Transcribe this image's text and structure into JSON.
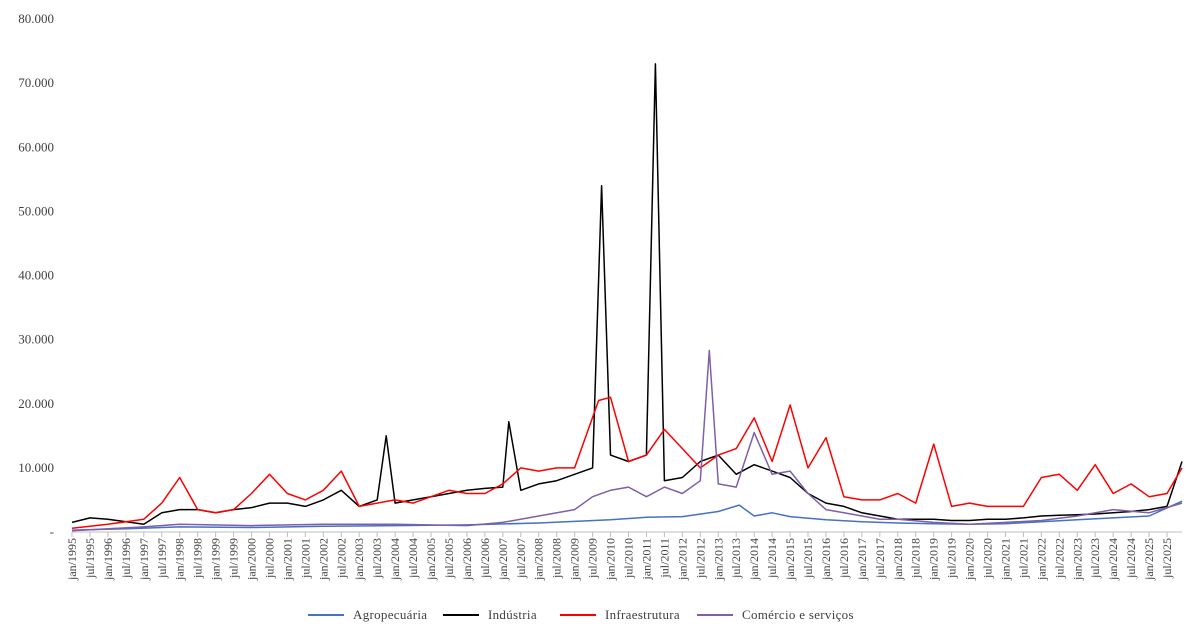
{
  "chart_data": {
    "type": "line",
    "title": "",
    "xlabel": "",
    "ylabel": "",
    "ylim": [
      0,
      80000
    ],
    "yticks": [
      0,
      10000,
      20000,
      30000,
      40000,
      50000,
      60000,
      70000,
      80000
    ],
    "ytick_labels": [
      "-",
      "10.000",
      "20.000",
      "30.000",
      "40.000",
      "50.000",
      "60.000",
      "70.000",
      "80.000"
    ],
    "x_start": "jan/1995",
    "x_end": "dez/2025",
    "x_tick_labels": [
      "jan/1995",
      "jul/1995",
      "jan/1996",
      "jul/1996",
      "jan/1997",
      "jul/1997",
      "jan/1998",
      "jul/1998",
      "jan/1999",
      "jul/1999",
      "jan/2000",
      "jul/2000",
      "jan/2001",
      "jul/2001",
      "jan/2002",
      "jul/2002",
      "jan/2003",
      "jul/2003",
      "jan/2004",
      "jul/2004",
      "jan/2005",
      "jul/2005",
      "jan/2006",
      "jul/2006",
      "jan/2007",
      "jul/2007",
      "jan/2008",
      "jul/2008",
      "jan/2009",
      "jul/2009",
      "jan/2010",
      "jul/2010",
      "jan/2011",
      "jul/2011",
      "jan/2012",
      "jul/2012",
      "jan/2013",
      "jul/2013",
      "jan/2014",
      "jul/2014",
      "jan/2015",
      "jul/2015",
      "jan/2016",
      "jul/2016",
      "jan/2017",
      "jul/2017",
      "jan/2018",
      "jul/2018",
      "jan/2019",
      "jul/2019",
      "jan/2020",
      "jul/2020",
      "jan/2021",
      "jul/2021",
      "jan/2022",
      "jul/2022",
      "jan/2023",
      "jul/2023",
      "jan/2024",
      "jul/2024",
      "jan/2025",
      "jul/2025"
    ],
    "grid": false,
    "legend_position": "bottom",
    "series": [
      {
        "name": "Agropecuária",
        "color": "#4472c4",
        "points": [
          [
            "jan/1995",
            300
          ],
          [
            "jul/1996",
            500
          ],
          [
            "jan/1998",
            800
          ],
          [
            "jan/2000",
            700
          ],
          [
            "jan/2002",
            900
          ],
          [
            "jan/2004",
            1000
          ],
          [
            "jan/2006",
            1100
          ],
          [
            "jan/2008",
            1400
          ],
          [
            "jan/2010",
            1900
          ],
          [
            "jan/2011",
            2300
          ],
          [
            "jan/2012",
            2400
          ],
          [
            "jan/2013",
            3200
          ],
          [
            "ago/2013",
            4200
          ],
          [
            "jan/2014",
            2500
          ],
          [
            "jul/2014",
            3000
          ],
          [
            "jan/2015",
            2400
          ],
          [
            "jan/2016",
            1900
          ],
          [
            "jan/2017",
            1600
          ],
          [
            "jan/2018",
            1400
          ],
          [
            "jan/2019",
            1300
          ],
          [
            "jan/2020",
            1200
          ],
          [
            "jan/2021",
            1300
          ],
          [
            "jan/2022",
            1600
          ],
          [
            "jan/2023",
            1900
          ],
          [
            "jan/2024",
            2200
          ],
          [
            "jan/2025",
            2500
          ],
          [
            "dez/2025",
            4800
          ]
        ]
      },
      {
        "name": "Indústria",
        "color": "#000000",
        "points": [
          [
            "jan/1995",
            1500
          ],
          [
            "jul/1995",
            2200
          ],
          [
            "jan/1996",
            2000
          ],
          [
            "jul/1996",
            1600
          ],
          [
            "jan/1997",
            1200
          ],
          [
            "jul/1997",
            3000
          ],
          [
            "jan/1998",
            3500
          ],
          [
            "jul/1998",
            3500
          ],
          [
            "jan/1999",
            3000
          ],
          [
            "jul/1999",
            3500
          ],
          [
            "jan/2000",
            3800
          ],
          [
            "jul/2000",
            4500
          ],
          [
            "jan/2001",
            4500
          ],
          [
            "jul/2001",
            4000
          ],
          [
            "jan/2002",
            5000
          ],
          [
            "jul/2002",
            6500
          ],
          [
            "jan/2003",
            4000
          ],
          [
            "jul/2003",
            5000
          ],
          [
            "out/2003",
            15000
          ],
          [
            "jan/2004",
            4500
          ],
          [
            "jul/2004",
            5000
          ],
          [
            "jan/2005",
            5500
          ],
          [
            "jul/2005",
            6000
          ],
          [
            "jan/2006",
            6500
          ],
          [
            "jul/2006",
            6800
          ],
          [
            "jan/2007",
            7000
          ],
          [
            "mar/2007",
            17200
          ],
          [
            "jul/2007",
            6500
          ],
          [
            "jan/2008",
            7500
          ],
          [
            "jul/2008",
            8000
          ],
          [
            "jan/2009",
            9000
          ],
          [
            "jul/2009",
            10000
          ],
          [
            "out/2009",
            54000
          ],
          [
            "jan/2010",
            12000
          ],
          [
            "jul/2010",
            11000
          ],
          [
            "jan/2011",
            12000
          ],
          [
            "abr/2011",
            73000
          ],
          [
            "jul/2011",
            8000
          ],
          [
            "jan/2012",
            8500
          ],
          [
            "jul/2012",
            11000
          ],
          [
            "jan/2013",
            12000
          ],
          [
            "jul/2013",
            9000
          ],
          [
            "jan/2014",
            10500
          ],
          [
            "jul/2014",
            9500
          ],
          [
            "jan/2015",
            8500
          ],
          [
            "jul/2015",
            6000
          ],
          [
            "jan/2016",
            4500
          ],
          [
            "jul/2016",
            4000
          ],
          [
            "jan/2017",
            3000
          ],
          [
            "jul/2017",
            2500
          ],
          [
            "jan/2018",
            2000
          ],
          [
            "jul/2018",
            2000
          ],
          [
            "jan/2019",
            2000
          ],
          [
            "jul/2019",
            1800
          ],
          [
            "jan/2020",
            1800
          ],
          [
            "jul/2020",
            2000
          ],
          [
            "jan/2021",
            2000
          ],
          [
            "jul/2021",
            2200
          ],
          [
            "jan/2022",
            2500
          ],
          [
            "jul/2022",
            2600
          ],
          [
            "jan/2023",
            2700
          ],
          [
            "jul/2023",
            2800
          ],
          [
            "jan/2024",
            3000
          ],
          [
            "jul/2024",
            3200
          ],
          [
            "jan/2025",
            3500
          ],
          [
            "jul/2025",
            4000
          ],
          [
            "dez/2025",
            11000
          ]
        ]
      },
      {
        "name": "Infraestrutura",
        "color": "#ff0000",
        "points": [
          [
            "jan/1995",
            600
          ],
          [
            "jan/1996",
            1200
          ],
          [
            "jan/1997",
            2000
          ],
          [
            "jul/1997",
            4500
          ],
          [
            "jan/1998",
            8500
          ],
          [
            "jul/1998",
            3500
          ],
          [
            "jan/1999",
            3000
          ],
          [
            "jul/1999",
            3500
          ],
          [
            "jan/2000",
            6000
          ],
          [
            "jul/2000",
            9000
          ],
          [
            "jan/2001",
            6000
          ],
          [
            "jul/2001",
            5000
          ],
          [
            "jan/2002",
            6500
          ],
          [
            "jul/2002",
            9500
          ],
          [
            "jan/2003",
            4000
          ],
          [
            "jul/2003",
            4500
          ],
          [
            "jan/2004",
            5000
          ],
          [
            "jul/2004",
            4500
          ],
          [
            "jan/2005",
            5500
          ],
          [
            "jul/2005",
            6500
          ],
          [
            "jan/2006",
            6000
          ],
          [
            "jul/2006",
            6000
          ],
          [
            "jan/2007",
            7500
          ],
          [
            "jul/2007",
            10000
          ],
          [
            "jan/2008",
            9500
          ],
          [
            "jul/2008",
            10000
          ],
          [
            "jan/2009",
            10000
          ],
          [
            "set/2009",
            20500
          ],
          [
            "jan/2010",
            21000
          ],
          [
            "jul/2010",
            11000
          ],
          [
            "jan/2011",
            12000
          ],
          [
            "jul/2011",
            16000
          ],
          [
            "jan/2012",
            13000
          ],
          [
            "jul/2012",
            10000
          ],
          [
            "jan/2013",
            12000
          ],
          [
            "jul/2013",
            13000
          ],
          [
            "jan/2014",
            17800
          ],
          [
            "jul/2014",
            11000
          ],
          [
            "jan/2015",
            19800
          ],
          [
            "jul/2015",
            10000
          ],
          [
            "jan/2016",
            14700
          ],
          [
            "jul/2016",
            5500
          ],
          [
            "jan/2017",
            5000
          ],
          [
            "jul/2017",
            5000
          ],
          [
            "jan/2018",
            6000
          ],
          [
            "jul/2018",
            4500
          ],
          [
            "jan/2019",
            13700
          ],
          [
            "jul/2019",
            4000
          ],
          [
            "jan/2020",
            4500
          ],
          [
            "jul/2020",
            4000
          ],
          [
            "jan/2021",
            4000
          ],
          [
            "jul/2021",
            4000
          ],
          [
            "jan/2022",
            8500
          ],
          [
            "jul/2022",
            9000
          ],
          [
            "jan/2023",
            6500
          ],
          [
            "jul/2023",
            10500
          ],
          [
            "jan/2024",
            6000
          ],
          [
            "jul/2024",
            7500
          ],
          [
            "jan/2025",
            5500
          ],
          [
            "jul/2025",
            6000
          ],
          [
            "dez/2025",
            10000
          ]
        ]
      },
      {
        "name": "Comércio e serviços",
        "color": "#7f5fa8",
        "points": [
          [
            "jan/1995",
            200
          ],
          [
            "jan/1996",
            500
          ],
          [
            "jan/1997",
            800
          ],
          [
            "jan/1998",
            1200
          ],
          [
            "jan/2000",
            1000
          ],
          [
            "jan/2002",
            1200
          ],
          [
            "jan/2004",
            1200
          ],
          [
            "jan/2006",
            1000
          ],
          [
            "jan/2007",
            1500
          ],
          [
            "jan/2008",
            2500
          ],
          [
            "jan/2009",
            3500
          ],
          [
            "jul/2009",
            5500
          ],
          [
            "jan/2010",
            6500
          ],
          [
            "jul/2010",
            7000
          ],
          [
            "jan/2011",
            5500
          ],
          [
            "jul/2011",
            7000
          ],
          [
            "jan/2012",
            6000
          ],
          [
            "jul/2012",
            8000
          ],
          [
            "out/2012",
            28300
          ],
          [
            "jan/2013",
            7500
          ],
          [
            "jul/2013",
            7000
          ],
          [
            "jan/2014",
            15500
          ],
          [
            "jul/2014",
            9000
          ],
          [
            "jan/2015",
            9500
          ],
          [
            "jul/2015",
            6000
          ],
          [
            "jan/2016",
            3500
          ],
          [
            "jul/2016",
            3000
          ],
          [
            "jan/2017",
            2500
          ],
          [
            "jul/2017",
            2000
          ],
          [
            "jan/2018",
            2000
          ],
          [
            "jan/2019",
            1500
          ],
          [
            "jan/2020",
            1200
          ],
          [
            "jan/2021",
            1500
          ],
          [
            "jan/2022",
            1800
          ],
          [
            "jan/2023",
            2500
          ],
          [
            "jan/2024",
            3500
          ],
          [
            "jan/2025",
            3000
          ],
          [
            "dez/2025",
            4500
          ]
        ]
      }
    ]
  }
}
